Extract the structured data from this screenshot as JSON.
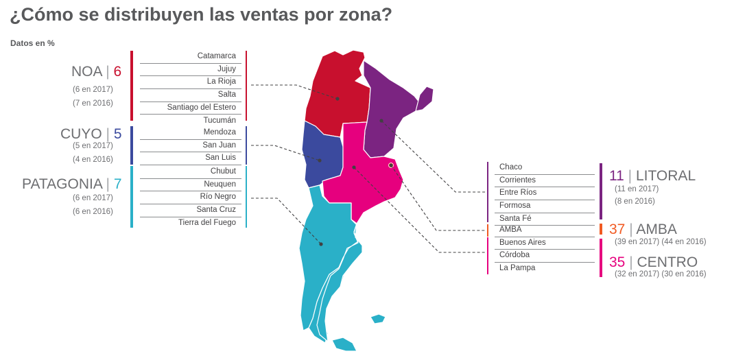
{
  "title": "¿Cómo se distribuyen las ventas por zona?",
  "subtitle": "Datos en %",
  "colors": {
    "noa": "#c8102e",
    "cuyo": "#3b4a9e",
    "patagonia": "#2ab0c8",
    "litoral": "#7b2481",
    "amba": "#f15a22",
    "centro": "#e6007e"
  },
  "zones": {
    "noa": {
      "name": "NOA",
      "value": "6",
      "y2017": "(6 en 2017)",
      "y2016": "(7 en 2016)",
      "provinces": [
        "Catamarca",
        "Jujuy",
        "La Rioja",
        "Salta",
        "Santiago del Estero",
        "Tucumán"
      ]
    },
    "cuyo": {
      "name": "CUYO",
      "value": "5",
      "y2017": "(5 en 2017)",
      "y2016": "(4 en 2016)",
      "provinces": [
        "Mendoza",
        "San Juan",
        "San Luis"
      ]
    },
    "patagonia": {
      "name": "PATAGONIA",
      "value": "7",
      "y2017": "(6 en 2017)",
      "y2016": "(6 en 2016)",
      "provinces": [
        "Chubut",
        "Neuquen",
        "Río Negro",
        "Santa Cruz",
        "Tierra del Fuego"
      ]
    },
    "litoral": {
      "name": "LITORAL",
      "value": "11",
      "y2017": "(11 en 2017)",
      "y2016": "(8 en 2016)",
      "provinces": [
        "Chaco",
        "Corrientes",
        "Entre Ríos",
        "Formosa",
        "Santa Fé"
      ]
    },
    "amba": {
      "name": "AMBA",
      "value": "37",
      "years": "(39 en 2017)  (44 en 2016)",
      "provinces": [
        "AMBA"
      ]
    },
    "centro": {
      "name": "CENTRO",
      "value": "35",
      "years": "(32 en 2017)  (30 en 2016)",
      "provinces": [
        "Buenos Aires",
        "Córdoba",
        "La Pampa"
      ]
    }
  }
}
